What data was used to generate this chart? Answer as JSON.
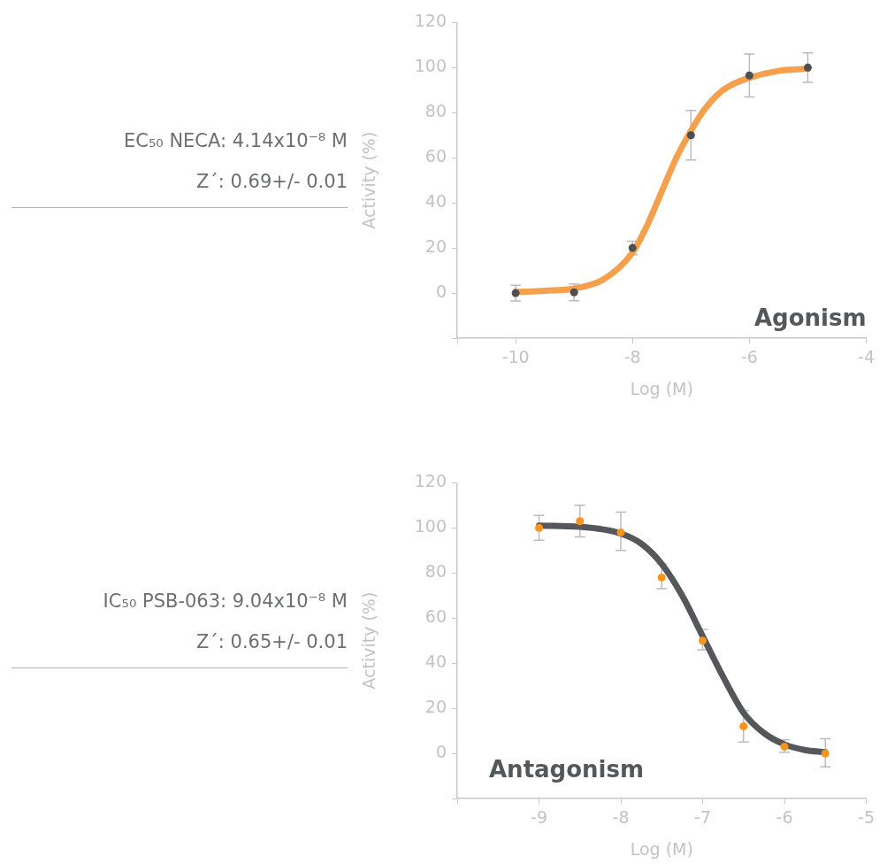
{
  "chart_data": [
    {
      "type": "line",
      "title": "Agonism",
      "xlabel": "Log (M)",
      "ylabel": "Activity (%)",
      "annotations": [
        "EC₅₀ NECA: 4.14x10⁻⁸ M",
        "Z´: 0.69+/- 0.01"
      ],
      "xlim": [
        -11,
        -4
      ],
      "xticks": [
        {
          "value": -11,
          "label": null
        },
        -10,
        -8,
        -6,
        -4
      ],
      "ylim": [
        -20,
        120
      ],
      "yticks": [
        {
          "value": -20,
          "label": null
        },
        0,
        20,
        40,
        60,
        80,
        100,
        120
      ],
      "grid": false,
      "legend": false,
      "series": [
        {
          "type": "line",
          "color": "#f5a04c",
          "x": [
            -10,
            -9.5,
            -9,
            -8.5,
            -8,
            -7.75,
            -7.5,
            -7.25,
            -7,
            -6.75,
            -6.5,
            -6.25,
            -6,
            -5.5,
            -5
          ],
          "values": [
            0.5,
            1,
            2,
            6,
            18,
            30,
            45,
            60,
            72,
            82,
            89,
            93,
            95.5,
            98.5,
            99.5
          ]
        },
        {
          "type": "scatter",
          "color": "#4d4f53",
          "x": [
            -10,
            -9,
            -8,
            -7,
            -6,
            -5
          ],
          "values": [
            0,
            0.3,
            20,
            70,
            96.5,
            100
          ],
          "errors": [
            [
              -3.5,
              3.5
            ],
            [
              -3.4,
              4
            ],
            [
              17,
              23
            ],
            [
              59,
              81
            ],
            [
              87,
              106
            ],
            [
              93.5,
              106.5
            ]
          ]
        }
      ]
    },
    {
      "type": "line",
      "title": "Antagonism",
      "xlabel": "Log (M)",
      "ylabel": "Activity (%)",
      "annotations": [
        "IC₅₀ PSB-063: 9.04x10⁻⁸ M",
        "Z´: 0.65+/- 0.01"
      ],
      "xlim": [
        -10,
        -5
      ],
      "xticks": [
        {
          "value": -10,
          "label": null
        },
        -9,
        -8,
        -7,
        -6,
        -5
      ],
      "ylim": [
        -20,
        120
      ],
      "yticks": [
        {
          "value": -20,
          "label": null
        },
        0,
        20,
        40,
        60,
        80,
        100,
        120
      ],
      "grid": false,
      "legend": false,
      "series": [
        {
          "type": "line",
          "color": "#55575b",
          "x": [
            -9,
            -8.5,
            -8,
            -7.75,
            -7.5,
            -7.25,
            -7,
            -6.75,
            -6.5,
            -6.25,
            -6,
            -5.75,
            -5.5
          ],
          "values": [
            101,
            100.5,
            97.5,
            93,
            84,
            70,
            52,
            34,
            18,
            9,
            4,
            1.5,
            0.5
          ]
        },
        {
          "type": "scatter",
          "color": "#f7941d",
          "x": [
            -9,
            -8.5,
            -8,
            -7.5,
            -7,
            -6.5,
            -6,
            -5.5
          ],
          "values": [
            100,
            103,
            98,
            78,
            50,
            12,
            3,
            0
          ],
          "errors": [
            [
              94.5,
              105.5
            ],
            [
              96,
              110
            ],
            [
              90,
              107
            ],
            [
              73,
              84
            ],
            [
              46,
              55
            ],
            [
              5,
              19
            ],
            [
              0.5,
              6
            ],
            [
              -6,
              6.5
            ]
          ]
        }
      ]
    }
  ]
}
